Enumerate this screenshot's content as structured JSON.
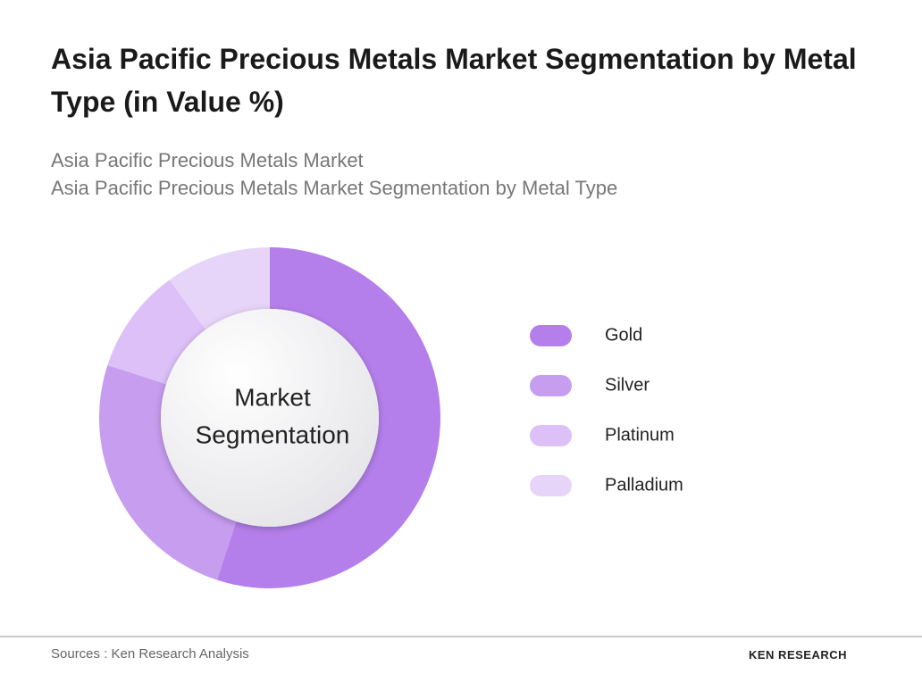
{
  "chart_data": {
    "type": "donut",
    "title": "Asia Pacific Precious Metals Market Segmentation by Metal Type (in Value %)",
    "subtitle": [
      "Asia Pacific Precious Metals Market",
      "Asia Pacific Precious Metals Market Segmentation by Metal Type"
    ],
    "center_label": [
      "Market",
      "Segmentation"
    ],
    "categories": [
      "Gold",
      "Silver",
      "Platinum",
      "Palladium"
    ],
    "values": [
      55,
      25,
      10,
      10
    ],
    "colors": [
      "#b57feb",
      "#c79df0",
      "#dcc0f7",
      "#e7d5f9"
    ]
  },
  "footer": {
    "source": "Sources : Ken Research Analysis",
    "logo": "KEN RESEARCH"
  }
}
